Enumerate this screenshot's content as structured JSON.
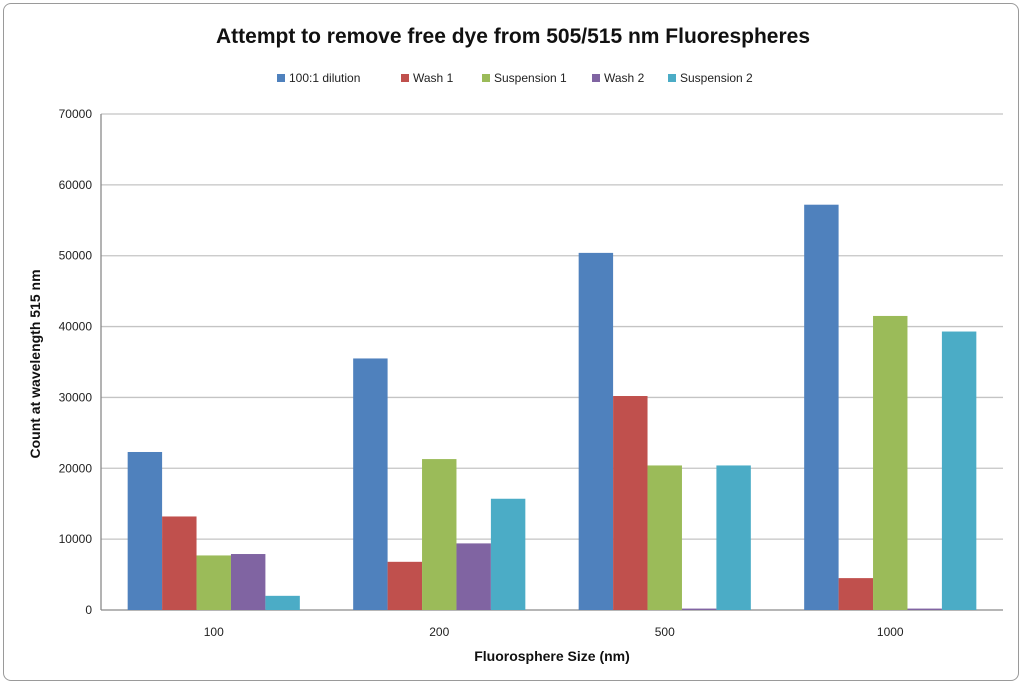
{
  "chart_data": {
    "type": "bar",
    "title": "Attempt to remove free dye from 505/515 nm Fluorespheres",
    "xlabel": "Fluorosphere Size (nm)",
    "ylabel": "Count at wavelength 515 nm",
    "categories": [
      "100",
      "200",
      "500",
      "1000"
    ],
    "ylim": [
      0,
      70000
    ],
    "yticks": [
      0,
      10000,
      20000,
      30000,
      40000,
      50000,
      60000,
      70000
    ],
    "grid": true,
    "legend_position": "top",
    "series": [
      {
        "name": "100:1 dilution",
        "color": "#4f81bd",
        "values": [
          22300,
          35500,
          50400,
          57200
        ]
      },
      {
        "name": "Wash 1",
        "color": "#c0504d",
        "values": [
          13200,
          6800,
          30200,
          4500
        ]
      },
      {
        "name": "Suspension 1",
        "color": "#9bbb59",
        "values": [
          7700,
          21300,
          20400,
          41500
        ]
      },
      {
        "name": "Wash 2",
        "color": "#8064a2",
        "values": [
          7900,
          9400,
          200,
          200
        ]
      },
      {
        "name": "Suspension 2",
        "color": "#4bacc6",
        "values": [
          2000,
          15700,
          20400,
          39300
        ]
      }
    ]
  }
}
